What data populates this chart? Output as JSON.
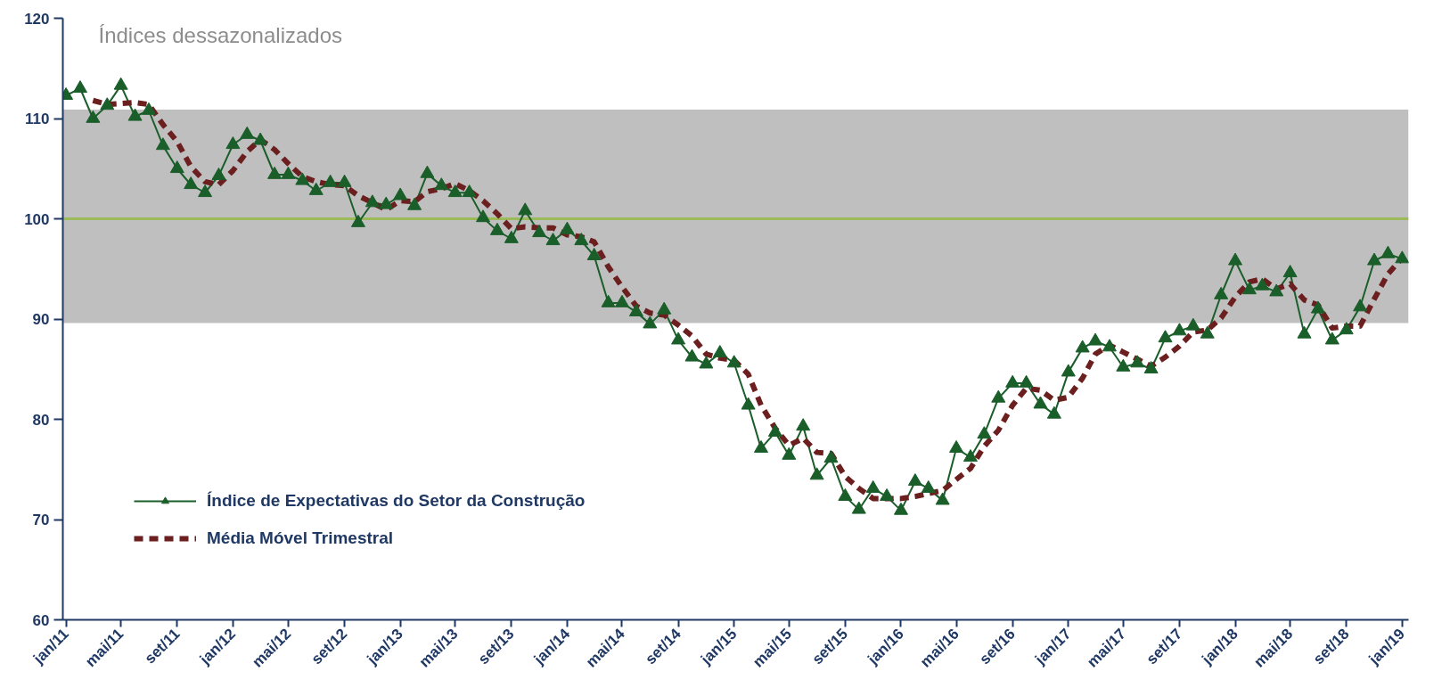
{
  "chart_data": {
    "type": "line",
    "title": "Índices dessazonalizados",
    "x": [
      "2011-01",
      "2011-02",
      "2011-03",
      "2011-04",
      "2011-05",
      "2011-06",
      "2011-07",
      "2011-08",
      "2011-09",
      "2011-10",
      "2011-11",
      "2011-12",
      "2012-01",
      "2012-02",
      "2012-03",
      "2012-04",
      "2012-05",
      "2012-06",
      "2012-07",
      "2012-08",
      "2012-09",
      "2012-10",
      "2012-11",
      "2012-12",
      "2013-01",
      "2013-02",
      "2013-03",
      "2013-04",
      "2013-05",
      "2013-06",
      "2013-07",
      "2013-08",
      "2013-09",
      "2013-10",
      "2013-11",
      "2013-12",
      "2014-01",
      "2014-02",
      "2014-03",
      "2014-04",
      "2014-05",
      "2014-06",
      "2014-07",
      "2014-08",
      "2014-09",
      "2014-10",
      "2014-11",
      "2014-12",
      "2015-01",
      "2015-02",
      "2015-03",
      "2015-04",
      "2015-05",
      "2015-06",
      "2015-07",
      "2015-08",
      "2015-09",
      "2015-10",
      "2015-11",
      "2015-12",
      "2016-01",
      "2016-02",
      "2016-03",
      "2016-04",
      "2016-05",
      "2016-06",
      "2016-07",
      "2016-08",
      "2016-09",
      "2016-10",
      "2016-11",
      "2016-12",
      "2017-01",
      "2017-02",
      "2017-03",
      "2017-04",
      "2017-05",
      "2017-06",
      "2017-07",
      "2017-08",
      "2017-09",
      "2017-10",
      "2017-11",
      "2017-12",
      "2018-01",
      "2018-02",
      "2018-03",
      "2018-04",
      "2018-05",
      "2018-06",
      "2018-07",
      "2018-08",
      "2018-09",
      "2018-10",
      "2018-11",
      "2018-12",
      "2019-01"
    ],
    "series": [
      {
        "name": "Índice de Expectativas do Setor da Construção",
        "color": "#1a5e2a",
        "marker": "triangle",
        "line_style": "solid",
        "values": [
          112.3,
          113.0,
          110.0,
          111.3,
          113.3,
          110.2,
          110.8,
          107.3,
          105.0,
          103.4,
          102.6,
          104.3,
          107.4,
          108.4,
          107.8,
          104.4,
          104.4,
          103.8,
          102.8,
          103.6,
          103.6,
          99.6,
          101.6,
          101.4,
          102.3,
          101.3,
          104.5,
          103.3,
          102.6,
          102.6,
          100.1,
          98.8,
          98.0,
          100.8,
          98.6,
          97.8,
          98.9,
          97.8,
          96.3,
          91.6,
          91.6,
          90.7,
          89.5,
          90.9,
          87.9,
          86.2,
          85.5,
          86.6,
          85.6,
          81.4,
          77.1,
          78.7,
          76.4,
          79.3,
          74.4,
          76.1,
          72.3,
          71.0,
          73.1,
          72.3,
          70.9,
          73.8,
          73.1,
          71.9,
          77.1,
          76.2,
          78.5,
          82.1,
          83.6,
          83.6,
          81.5,
          80.5,
          84.7,
          87.1,
          87.8,
          87.2,
          85.2,
          85.6,
          85.0,
          88.1,
          88.8,
          89.3,
          88.5,
          92.4,
          95.8,
          92.9,
          93.3,
          92.7,
          94.6,
          88.5,
          91.0,
          87.9,
          88.9,
          91.2,
          95.8,
          96.5,
          96.0
        ]
      },
      {
        "name": "Média Móvel Trimestral",
        "color": "#6b1f1f",
        "marker": "none",
        "line_style": "dashed",
        "values": [
          null,
          null,
          111.8,
          111.4,
          111.5,
          111.6,
          111.4,
          109.4,
          107.7,
          105.2,
          103.7,
          103.4,
          104.8,
          106.7,
          107.9,
          106.9,
          105.5,
          104.2,
          103.7,
          103.4,
          103.3,
          102.3,
          101.6,
          100.9,
          101.8,
          101.7,
          102.7,
          103.0,
          103.5,
          102.8,
          101.8,
          100.5,
          99.0,
          99.2,
          99.1,
          99.1,
          98.4,
          98.2,
          97.7,
          95.2,
          93.2,
          91.3,
          90.6,
          90.4,
          89.4,
          88.3,
          86.5,
          86.1,
          85.9,
          84.5,
          81.4,
          79.1,
          77.4,
          78.1,
          76.7,
          76.6,
          74.3,
          73.1,
          72.1,
          72.1,
          72.1,
          72.3,
          72.6,
          72.9,
          74.0,
          75.1,
          77.3,
          78.9,
          81.4,
          83.1,
          82.9,
          81.9,
          82.2,
          84.1,
          86.5,
          87.4,
          86.7,
          86.0,
          85.3,
          86.2,
          87.3,
          88.7,
          88.9,
          90.1,
          92.2,
          93.7,
          94.0,
          93.0,
          93.5,
          91.9,
          91.4,
          89.1,
          89.3,
          89.3,
          92.0,
          94.5,
          96.1
        ]
      }
    ],
    "xlim": [
      "2010-12-25",
      "2019-01-15"
    ],
    "xticks": [
      {
        "value": "2011-01",
        "label": "jan/11"
      },
      {
        "value": "2011-05",
        "label": "mai/11"
      },
      {
        "value": "2011-09",
        "label": "set/11"
      },
      {
        "value": "2012-01",
        "label": "jan/12"
      },
      {
        "value": "2012-05",
        "label": "mai/12"
      },
      {
        "value": "2012-09",
        "label": "set/12"
      },
      {
        "value": "2013-01",
        "label": "jan/13"
      },
      {
        "value": "2013-05",
        "label": "mai/13"
      },
      {
        "value": "2013-09",
        "label": "set/13"
      },
      {
        "value": "2014-01",
        "label": "jan/14"
      },
      {
        "value": "2014-05",
        "label": "mai/14"
      },
      {
        "value": "2014-09",
        "label": "set/14"
      },
      {
        "value": "2015-01",
        "label": "jan/15"
      },
      {
        "value": "2015-05",
        "label": "mai/15"
      },
      {
        "value": "2015-09",
        "label": "set/15"
      },
      {
        "value": "2016-01",
        "label": "jan/16"
      },
      {
        "value": "2016-05",
        "label": "mai/16"
      },
      {
        "value": "2016-09",
        "label": "set/16"
      },
      {
        "value": "2017-01",
        "label": "jan/17"
      },
      {
        "value": "2017-05",
        "label": "mai/17"
      },
      {
        "value": "2017-09",
        "label": "set/17"
      },
      {
        "value": "2018-01",
        "label": "jan/18"
      },
      {
        "value": "2018-05",
        "label": "mai/18"
      },
      {
        "value": "2018-09",
        "label": "set/18"
      },
      {
        "value": "2019-01",
        "label": "jan/19"
      }
    ],
    "ylim": [
      60,
      120
    ],
    "yticks": [
      60,
      70,
      80,
      90,
      100,
      110,
      120
    ],
    "bands": [
      {
        "axis": "y",
        "from": 89.6,
        "to": 110.9,
        "color": "#bfbfbf"
      }
    ],
    "ref_lines": [
      {
        "axis": "y",
        "value": 100,
        "color": "#9bbb59",
        "line_style": "solid"
      }
    ],
    "grid": false,
    "legend": "bottom left"
  }
}
